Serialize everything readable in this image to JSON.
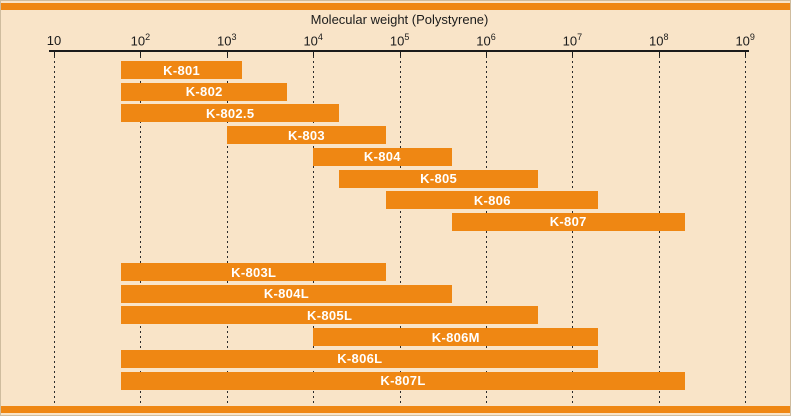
{
  "title": "Molecular weight (Polystyrene)",
  "colors": {
    "background": "#f9e4c8",
    "bar_orange": "#ef8713",
    "accent_rule_orange": "#ef8713",
    "axis_black": "#1b1b1b",
    "bar_label_white": "#ffffff"
  },
  "chart_data": {
    "type": "bar",
    "subtype": "horizontal-range-bars",
    "title": "Molecular weight (Polystyrene)",
    "xlabel": "Molecular weight (Polystyrene)",
    "x_scale": "log10",
    "xlim": [
      10,
      1000000000
    ],
    "grid": "dashed-vertical-per-decade",
    "axis_ticks": [
      {
        "base": "10",
        "exp": null,
        "value": 10
      },
      {
        "base": "10",
        "exp": "2",
        "value": 100
      },
      {
        "base": "10",
        "exp": "3",
        "value": 1000
      },
      {
        "base": "10",
        "exp": "4",
        "value": 10000
      },
      {
        "base": "10",
        "exp": "5",
        "value": 100000
      },
      {
        "base": "10",
        "exp": "6",
        "value": 1000000
      },
      {
        "base": "10",
        "exp": "7",
        "value": 10000000
      },
      {
        "base": "10",
        "exp": "8",
        "value": 100000000
      },
      {
        "base": "10",
        "exp": "9",
        "value": 1000000000
      }
    ],
    "series": [
      {
        "name": "K-801",
        "group": 0,
        "range": [
          60,
          1500
        ]
      },
      {
        "name": "K-802",
        "group": 0,
        "range": [
          60,
          5000
        ]
      },
      {
        "name": "K-802.5",
        "group": 0,
        "range": [
          60,
          20000
        ]
      },
      {
        "name": "K-803",
        "group": 0,
        "range": [
          1000,
          70000
        ]
      },
      {
        "name": "K-804",
        "group": 0,
        "range": [
          10000,
          400000
        ]
      },
      {
        "name": "K-805",
        "group": 0,
        "range": [
          20000,
          4000000
        ]
      },
      {
        "name": "K-806",
        "group": 0,
        "range": [
          70000,
          20000000
        ]
      },
      {
        "name": "K-807",
        "group": 0,
        "range": [
          400000,
          200000000
        ]
      },
      {
        "name": "K-803L",
        "group": 1,
        "range": [
          60,
          70000
        ]
      },
      {
        "name": "K-804L",
        "group": 1,
        "range": [
          60,
          400000
        ]
      },
      {
        "name": "K-805L",
        "group": 1,
        "range": [
          60,
          4000000
        ]
      },
      {
        "name": "K-806M",
        "group": 1,
        "range": [
          10000,
          20000000
        ]
      },
      {
        "name": "K-806L",
        "group": 1,
        "range": [
          60,
          20000000
        ]
      },
      {
        "name": "K-807L",
        "group": 1,
        "range": [
          60,
          200000000
        ]
      }
    ]
  }
}
